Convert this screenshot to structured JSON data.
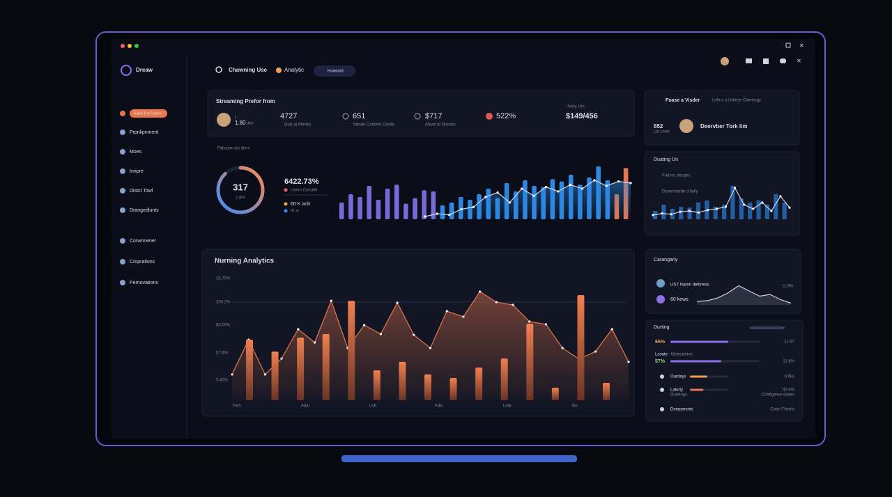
{
  "sidebar": {
    "brand": "Dreaw",
    "items": [
      "Adubl The Fnpers",
      "Prpnlipnment",
      "Moes",
      "Inripre",
      "Distct Towl",
      "Drangedlunts",
      "Corwnnener",
      "Croprations",
      "Pernovations"
    ]
  },
  "topbar": {
    "search": "Chawning Use",
    "tab": "Analytic",
    "button": "Howrard"
  },
  "summary": {
    "title": "Streaming Prefor from",
    "user_top": "I",
    "user_value": "1.80",
    "user_unit": "ubs",
    "stats": [
      {
        "value": "4727",
        "label": "Duic ai Mertes"
      },
      {
        "value": "651",
        "label": "Yalnde Content Castle"
      },
      {
        "value": "$717",
        "label": "Ahuel at Drecles"
      },
      {
        "value": "522%"
      }
    ],
    "right_label": "Aolry Um",
    "right_value": "$149/456"
  },
  "breadcrumb": "Fiducian lex diers",
  "donut": {
    "center": "317",
    "sub": "1.6%",
    "ring": 88,
    "headline": "6422.73%",
    "legend": [
      "Usern Conuler",
      "60 K anb",
      "IK is"
    ]
  },
  "activity": {
    "series": [
      {
        "color": "#7a68d8",
        "values": [
          30,
          45,
          40,
          60,
          35,
          55,
          62,
          28,
          38,
          52,
          50
        ]
      },
      {
        "color": "#2d86e0",
        "values": [
          25,
          30,
          40,
          35,
          45,
          55,
          38,
          65,
          50,
          70,
          60,
          58,
          72,
          68,
          80,
          62,
          75,
          95,
          70
        ]
      },
      {
        "color": "#e8774d",
        "values": [
          45,
          92
        ]
      }
    ],
    "line": [
      5,
      10,
      8,
      18,
      22,
      40,
      48,
      30,
      55,
      42,
      58,
      50,
      62,
      55,
      70,
      60,
      68,
      65
    ],
    "ylim": [
      0,
      100
    ]
  },
  "main_chart": {
    "title": "Nurning Analytics",
    "y_labels": [
      "15.70%",
      "200.2%",
      "80,00%",
      "57.8%",
      "5.40%"
    ],
    "x_labels": [
      "Fien",
      "Adiu",
      "Loft",
      "Adiv",
      "Lota",
      "Ain"
    ],
    "line": [
      20.6,
      48.3,
      20.6,
      33.3,
      56.7,
      46.1,
      79.4,
      41.7,
      60,
      52.8,
      77.8,
      52.2,
      41.7,
      71.1,
      66.7,
      86.7,
      78.3,
      76.1,
      62.8,
      60.6,
      41.7,
      32.8,
      38.9,
      56.7,
      30.6
    ],
    "bars": [
      48.3,
      38.9,
      50,
      52.8,
      79.4,
      23.9,
      30.6,
      20.6,
      17.8,
      26.1,
      33.3,
      61.1,
      10,
      83.9,
      13.9
    ],
    "ylim": [
      0,
      100
    ],
    "color": "#e8774d"
  },
  "profile": {
    "title": "Foase a Visder",
    "note": "Lefa c a Urbese Chernogy",
    "value": "652",
    "value_label": "Lst Uses",
    "name": "Deervber Tork lim"
  },
  "duating": {
    "title": "Duating Un",
    "items": [
      "Fudsss desgns",
      "Dorenmarde d lially"
    ],
    "bars": [
      20,
      35,
      25,
      30,
      28,
      40,
      45,
      30,
      35,
      80,
      50,
      40,
      45,
      35,
      60,
      40
    ],
    "line": [
      10,
      14,
      12,
      18,
      20,
      16,
      22,
      25,
      30,
      75,
      35,
      25,
      40,
      20,
      55,
      28
    ],
    "ylim": [
      0,
      100
    ]
  },
  "carangany": {
    "title": "Carangany",
    "rows": [
      "UST Naren defimess",
      "60 kews"
    ],
    "right": "11.6%",
    "spark": [
      10,
      12,
      20,
      35,
      55,
      40,
      25,
      30,
      15,
      5
    ],
    "ylim": [
      0,
      100
    ]
  },
  "durting": {
    "title": "Durting",
    "rows": [
      {
        "value_label": "65%",
        "value": 65,
        "right": "11.67",
        "color": "#8f6ee8"
      },
      {
        "title": "Lsoate",
        "sub": "Adresations",
        "value_label": "57%",
        "value": 57,
        "right": "11.6%",
        "color": "#8f6ee8"
      },
      {
        "label": "Ourdeys",
        "value": 45,
        "right": "8.6ks",
        "color": "#f0a040"
      },
      {
        "label": "Lalurty",
        "sub": "Dureings",
        "value": 35,
        "right": "55.6%",
        "right_sub": "Configeree daaes",
        "color": "#e8774d"
      },
      {
        "label": "Deerpments",
        "right": "Coart Thems"
      }
    ]
  }
}
